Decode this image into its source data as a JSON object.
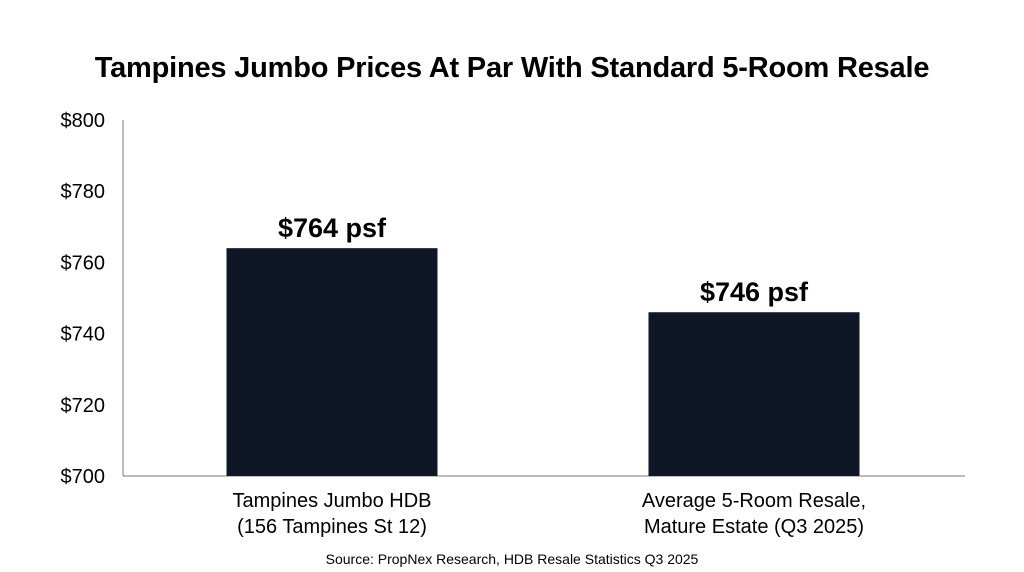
{
  "chart_data": {
    "type": "bar",
    "title": "Tampines Jumbo Prices At Par With Standard 5-Room Resale",
    "categories": [
      [
        "Tampines Jumbo HDB",
        "(156 Tampines St 12)"
      ],
      [
        "Average 5-Room Resale,",
        "Mature Estate (Q3 2025)"
      ]
    ],
    "values": [
      764,
      746
    ],
    "data_labels": [
      "$764 psf",
      "$746 psf"
    ],
    "ylim": [
      700,
      800
    ],
    "yticks": [
      700,
      720,
      740,
      760,
      780,
      800
    ],
    "ytick_labels": [
      "$700",
      "$720",
      "$740",
      "$760",
      "$780",
      "$800"
    ],
    "xlabel": "",
    "ylabel": "",
    "grid": false,
    "bar_color": "#0f1626",
    "source": "Source: PropNex Research, HDB Resale Statistics Q3 2025"
  }
}
